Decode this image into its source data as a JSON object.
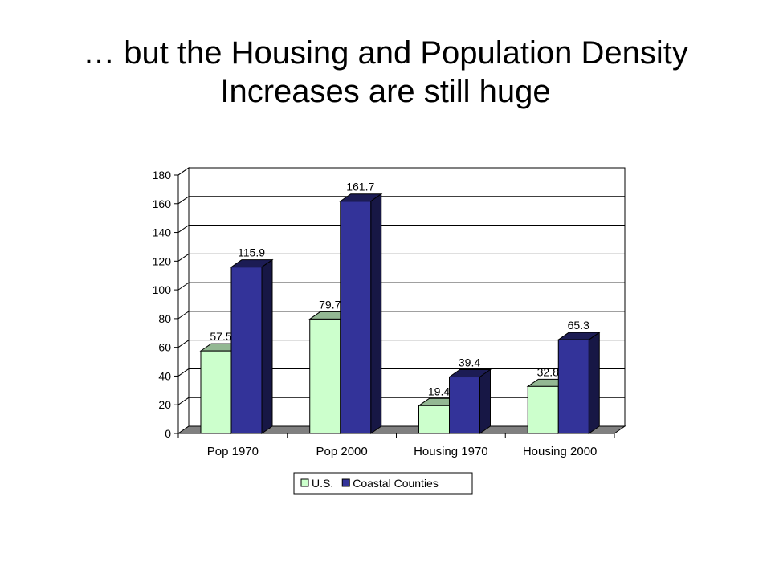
{
  "slide": {
    "title_line1": "… but the Housing and Population Density",
    "title_line2": "Increases are still huge"
  },
  "chart_data": {
    "type": "bar",
    "categories": [
      "Pop 1970",
      "Pop 2000",
      "Housing 1970",
      "Housing 2000"
    ],
    "series": [
      {
        "name": "U.S.",
        "values": [
          57.5,
          79.7,
          19.4,
          32.8
        ],
        "color": "#ccffcc"
      },
      {
        "name": "Coastal Counties",
        "values": [
          115.9,
          161.7,
          39.4,
          65.3
        ],
        "color": "#333399"
      }
    ],
    "data_labels": true,
    "ylim": [
      0,
      180
    ],
    "yticks": [
      "0",
      "20",
      "40",
      "60",
      "80",
      "100",
      "120",
      "140",
      "160",
      "180"
    ],
    "grid": true,
    "legend_position": "bottom",
    "style": "3d-column"
  }
}
